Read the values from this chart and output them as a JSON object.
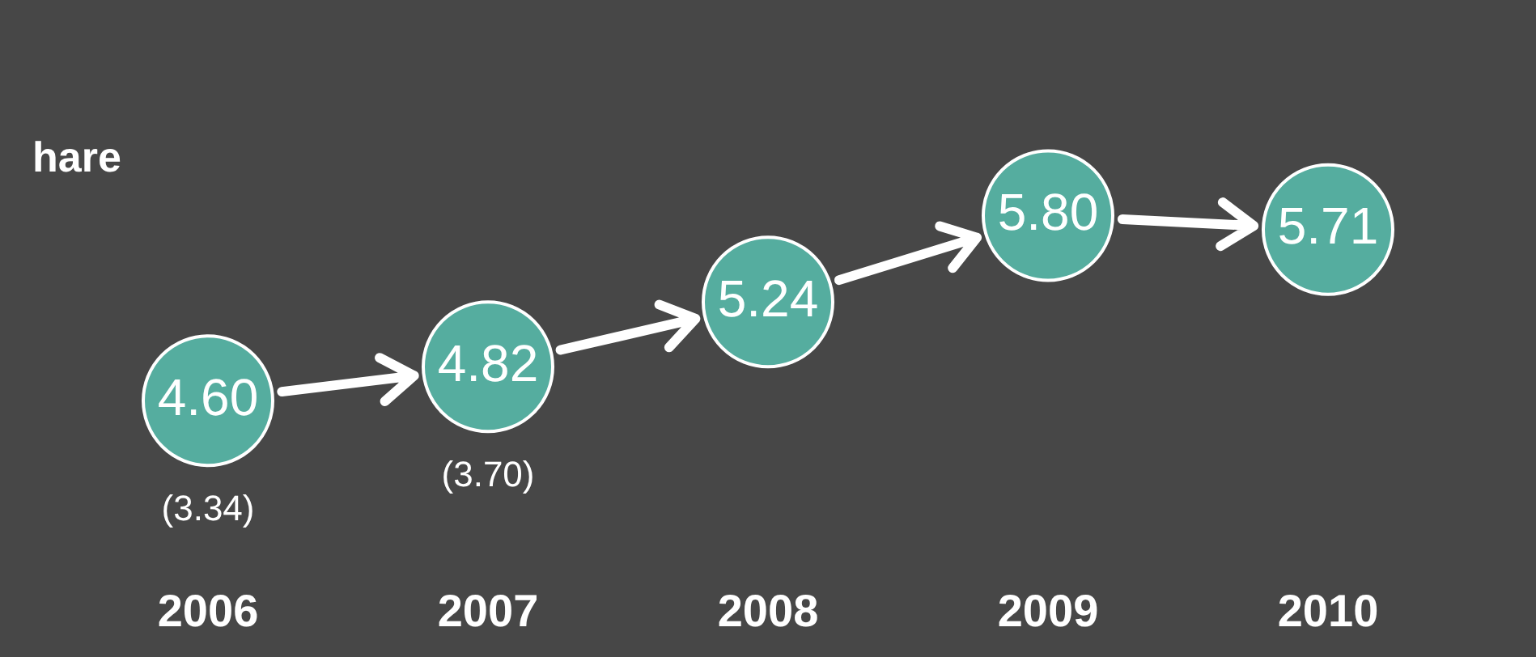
{
  "chart_data": {
    "type": "scatter",
    "title": "hare",
    "categories": [
      "2006",
      "2007",
      "2008",
      "2009",
      "2010"
    ],
    "series": [
      {
        "color": "#55ad9f",
        "values": [
          4.6,
          4.82,
          5.24,
          5.8,
          5.71
        ],
        "value_labels": [
          "4.60",
          "4.82",
          "5.24",
          "5.80",
          "5.71"
        ]
      }
    ],
    "marker": "circle",
    "grid": false,
    "legend": false,
    "annotations": [
      "(3.34)",
      "(3.70)"
    ]
  }
}
